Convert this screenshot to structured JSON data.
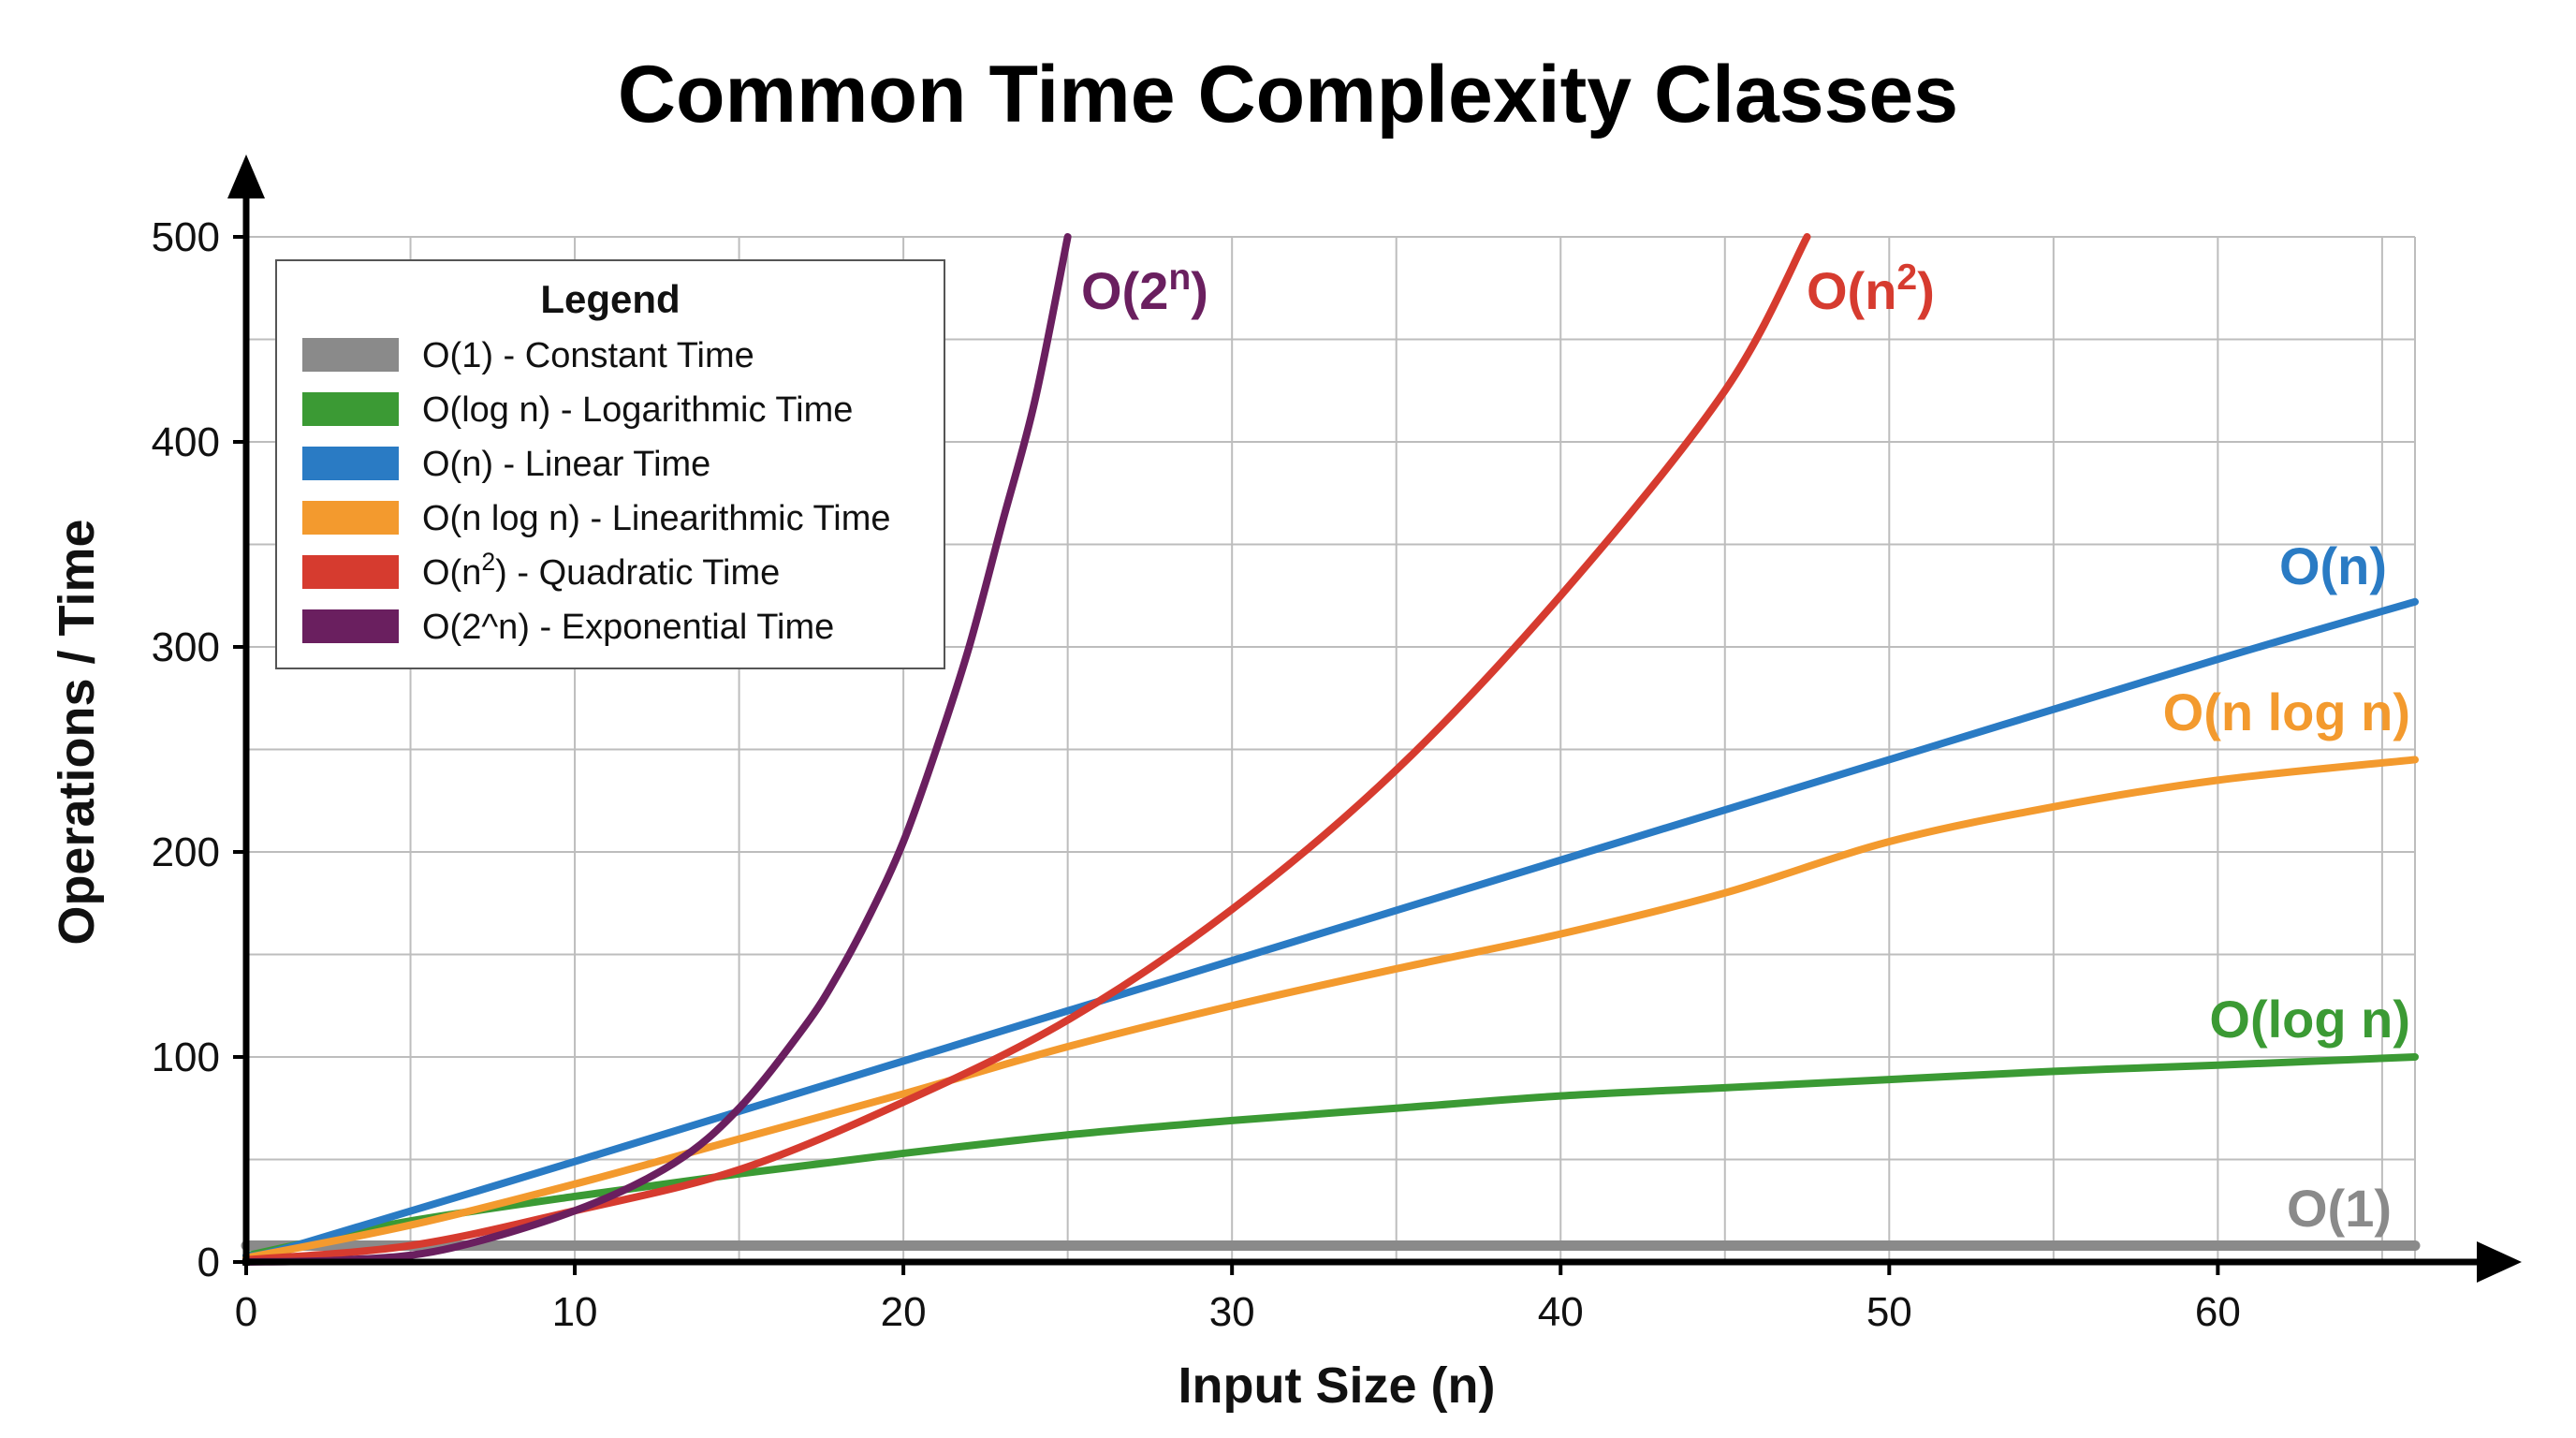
{
  "chart_data": {
    "type": "line",
    "title": "Common Time Complexity Classes",
    "xlabel": "Input Size (n)",
    "ylabel": "Operations / Time",
    "xlim": [
      0,
      66
    ],
    "ylim": [
      0,
      500
    ],
    "xticks": [
      0,
      10,
      20,
      30,
      40,
      50,
      60
    ],
    "yticks": [
      0,
      100,
      200,
      300,
      400,
      500
    ],
    "grid": true,
    "legend": {
      "title": "Legend",
      "placement": "top-left"
    },
    "series": [
      {
        "id": "o1",
        "legend": {
          "pre": "O(1) - Constant Time",
          "sup": "",
          "post": ""
        },
        "annotation": {
          "pre": "O(1)",
          "sup": "",
          "post": ""
        },
        "color": "#8a8a8a",
        "x": [
          0,
          66
        ],
        "y": [
          8,
          8
        ]
      },
      {
        "id": "ologn",
        "legend": {
          "pre": "O(log n) - Logarithmic Time",
          "sup": "",
          "post": ""
        },
        "annotation": {
          "pre": "O(log n)",
          "sup": "",
          "post": ""
        },
        "color": "#3b9a34",
        "x": [
          0,
          2,
          5,
          10,
          15,
          20,
          25,
          30,
          35,
          40,
          45,
          50,
          55,
          60,
          66
        ],
        "y": [
          3,
          10,
          20,
          32,
          43,
          53,
          62,
          69,
          75,
          81,
          85,
          89,
          93,
          96,
          100
        ]
      },
      {
        "id": "on",
        "legend": {
          "pre": "O(n) - Linear Time",
          "sup": "",
          "post": ""
        },
        "annotation": {
          "pre": "O(n)",
          "sup": "",
          "post": ""
        },
        "color": "#2a7bc4",
        "x": [
          0,
          1.5,
          10,
          20,
          30,
          40,
          50,
          60,
          66
        ],
        "y": [
          3,
          8,
          49,
          98,
          147,
          196,
          245,
          294,
          322
        ]
      },
      {
        "id": "onlogn",
        "legend": {
          "pre": "O(n log n) - Linearithmic Time",
          "sup": "",
          "post": ""
        },
        "annotation": {
          "pre": "O(n log n)",
          "sup": "",
          "post": ""
        },
        "color": "#f39a2e",
        "x": [
          0,
          5,
          10,
          15,
          20,
          25,
          30,
          35,
          40,
          45,
          50,
          55,
          60,
          66
        ],
        "y": [
          2,
          18,
          38,
          60,
          82,
          105,
          125,
          143,
          160,
          180,
          205,
          222,
          235,
          245
        ]
      },
      {
        "id": "on2",
        "legend": {
          "pre": "O(n",
          "sup": "2",
          "post": ") - Quadratic Time"
        },
        "annotation": {
          "pre": "O(n",
          "sup": "2",
          "post": ")"
        },
        "color": "#d63b2f",
        "x": [
          0,
          5,
          10,
          15,
          20,
          25,
          30,
          35,
          40,
          45,
          47.5
        ],
        "y": [
          1,
          8,
          25,
          45,
          78,
          118,
          172,
          240,
          325,
          425,
          500
        ]
      },
      {
        "id": "o2n",
        "legend": {
          "pre": "O(2^n) - Exponential Time",
          "sup": "",
          "post": ""
        },
        "annotation": {
          "pre": "O(2",
          "sup": "n",
          "post": ")"
        },
        "color": "#6a1f5f",
        "x": [
          0,
          3,
          6,
          10,
          13,
          15,
          17,
          18,
          19,
          20,
          21,
          22,
          23,
          24,
          25
        ],
        "y": [
          0,
          1,
          6,
          25,
          48,
          75,
          115,
          140,
          170,
          205,
          250,
          300,
          360,
          420,
          500
        ]
      }
    ]
  }
}
